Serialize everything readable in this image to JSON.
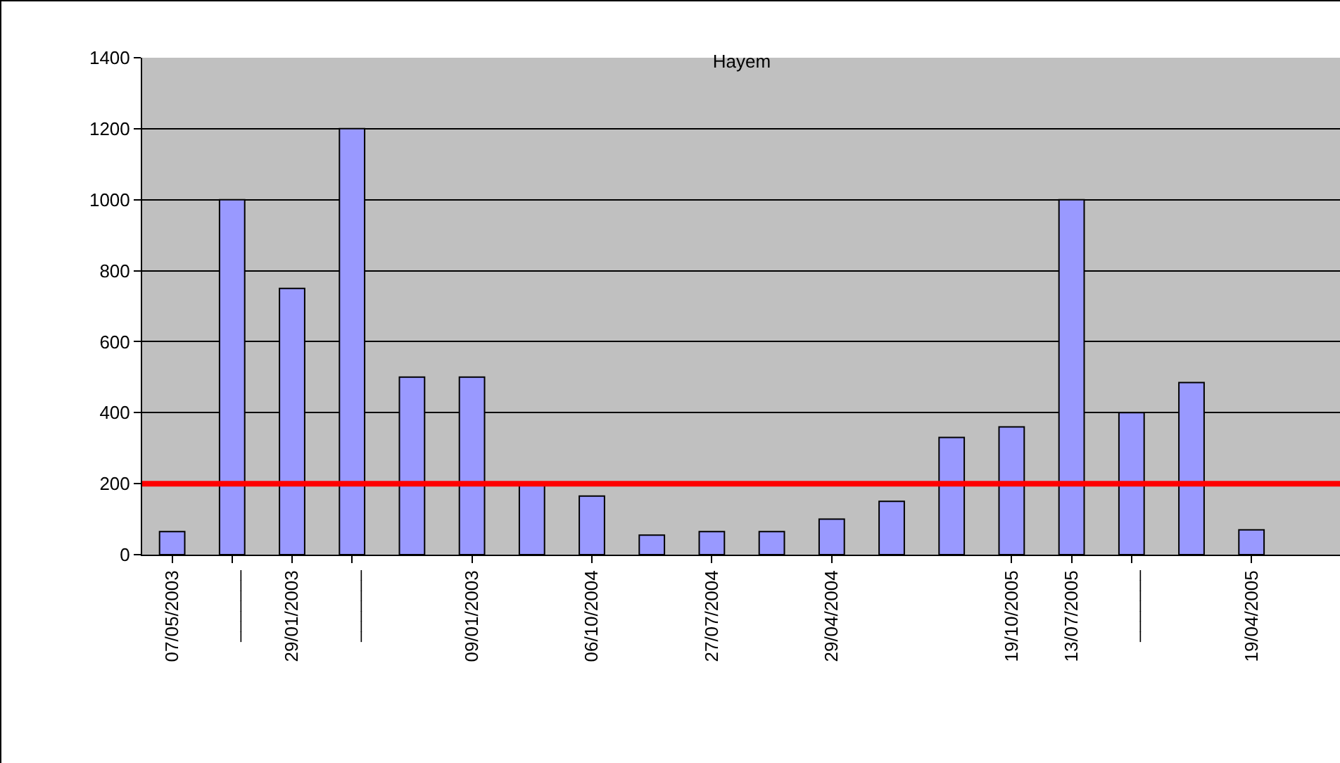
{
  "chart_data": {
    "type": "bar",
    "title": "Hayem",
    "categories": [
      "07/05/2003",
      "_______",
      "29/01/2003",
      "_______",
      null,
      "09/01/2003",
      null,
      "06/10/2004",
      null,
      "27/07/2004",
      null,
      "29/04/2004",
      null,
      null,
      "19/10/2005",
      "13/07/2005",
      "_______",
      null,
      "19/04/2005",
      null
    ],
    "values": [
      65,
      1000,
      750,
      1200,
      500,
      500,
      200,
      165,
      55,
      65,
      65,
      100,
      150,
      330,
      360,
      1000,
      400,
      485,
      70,
      null
    ],
    "color": "#9999ff",
    "ylim": [
      0,
      1400
    ],
    "yticks": [
      0,
      200,
      400,
      600,
      800,
      1000,
      1200,
      1400
    ],
    "grid": "y",
    "ref_lines": [
      {
        "axis": "y",
        "value": 200,
        "color": "#ff0000"
      }
    ]
  }
}
